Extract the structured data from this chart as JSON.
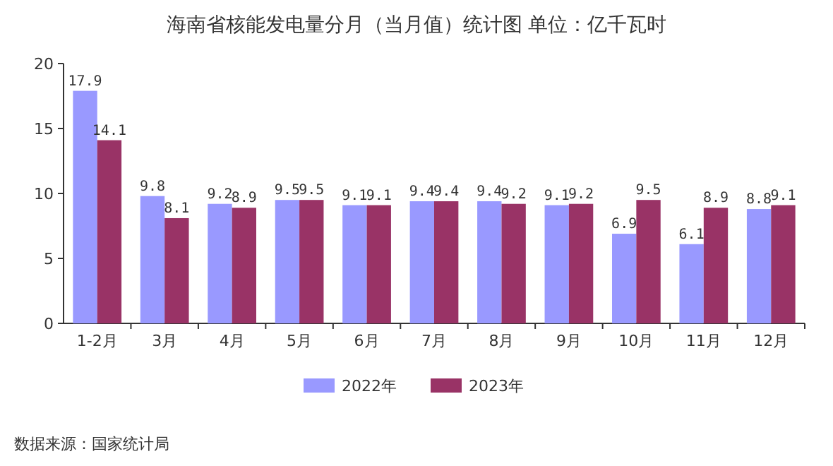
{
  "chart_data": {
    "type": "bar",
    "title": "海南省核能发电量分月（当月值）统计图 单位：亿千瓦时",
    "categories": [
      "1-2月",
      "3月",
      "4月",
      "5月",
      "6月",
      "7月",
      "8月",
      "9月",
      "10月",
      "11月",
      "12月"
    ],
    "series": [
      {
        "name": "2022年",
        "color": "#9999ff",
        "values": [
          17.9,
          9.8,
          9.2,
          9.5,
          9.1,
          9.4,
          9.4,
          9.1,
          6.9,
          6.1,
          8.8
        ]
      },
      {
        "name": "2023年",
        "color": "#993366",
        "values": [
          14.1,
          8.1,
          8.9,
          9.5,
          9.1,
          9.4,
          9.2,
          9.2,
          9.5,
          8.9,
          9.1
        ]
      }
    ],
    "ylim": [
      0,
      20
    ],
    "yticks": [
      0,
      5,
      10,
      15,
      20
    ],
    "data_labels": true,
    "legend": "bottom",
    "annotations": [
      "数据来源：国家统计局"
    ]
  }
}
